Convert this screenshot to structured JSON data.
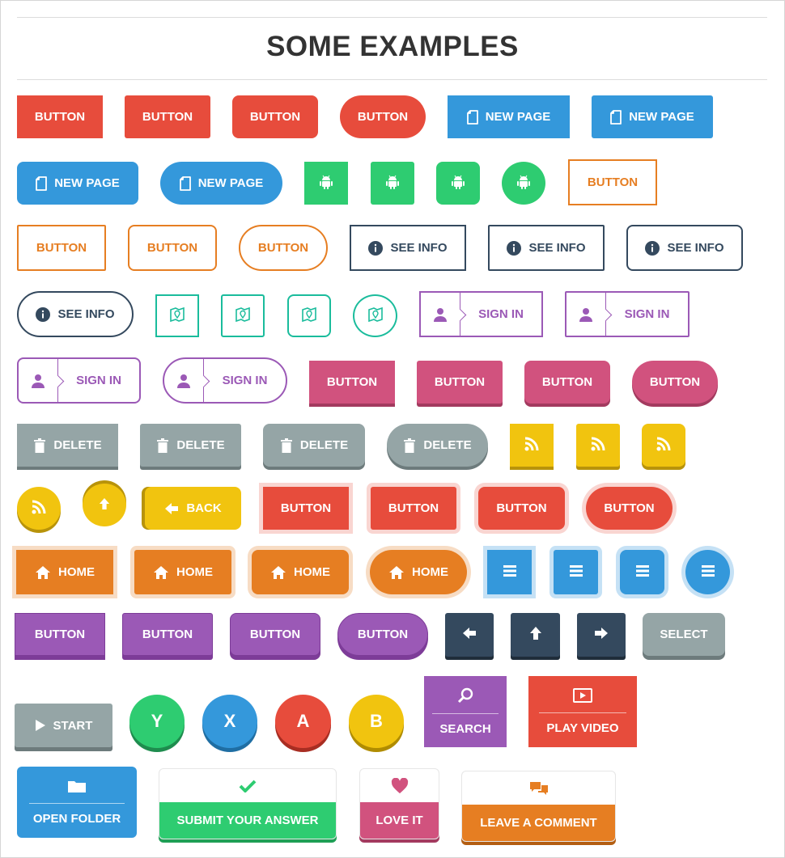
{
  "page": {
    "title": "SOME EXAMPLES"
  },
  "labels": {
    "button": "BUTTON",
    "new_page": "NEW PAGE",
    "see_info": "SEE INFO",
    "sign_in": "SIGN IN",
    "delete": "DELETE",
    "back": "BACK",
    "home": "HOME",
    "select": "SELECT",
    "start": "START",
    "search": "SEARCH",
    "play_video": "PLAY VIDEO",
    "open_folder": "OPEN FOLDER",
    "submit_answer": "SUBMIT YOUR ANSWER",
    "love_it": "LOVE IT",
    "leave_comment": "LEAVE A COMMENT"
  },
  "game_buttons": {
    "y": "Y",
    "x": "X",
    "a": "A",
    "b": "B"
  },
  "colors": {
    "red": "#e74c3c",
    "blue": "#3498db",
    "green": "#2ecc71",
    "orange": "#e67e22",
    "navy": "#34495e",
    "teal": "#1abc9c",
    "purple": "#9b59b6",
    "pink": "#d1527e",
    "gray": "#95a5a6",
    "yellow": "#f1c40f"
  },
  "icons": [
    "file-icon",
    "android-icon",
    "info-icon",
    "map-icon",
    "user-icon",
    "trash-icon",
    "rss-icon",
    "arrow-up-icon",
    "arrow-left-icon",
    "arrow-right-icon",
    "home-icon",
    "menu-icon",
    "play-icon",
    "search-icon",
    "video-icon",
    "folder-icon",
    "check-icon",
    "heart-icon",
    "comments-icon"
  ]
}
